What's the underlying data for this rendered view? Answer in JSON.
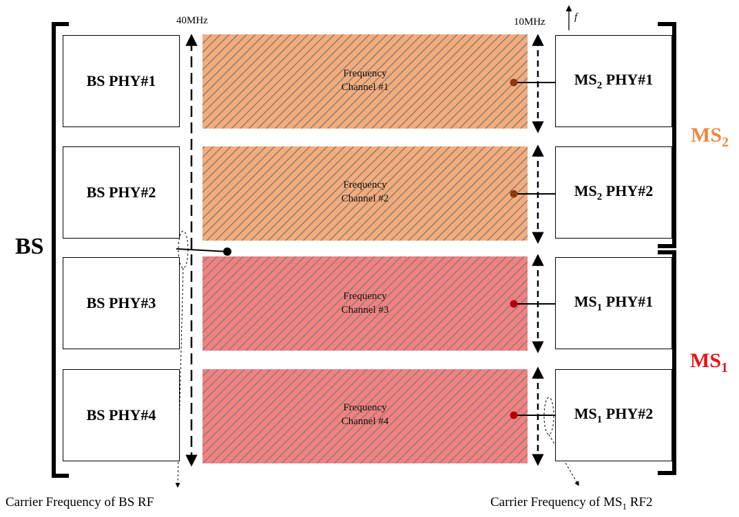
{
  "bs_label": "BS",
  "ms2_group": {
    "main": "MS",
    "sub": "2",
    "color": "#f2883c"
  },
  "ms1_group": {
    "main": "MS",
    "sub": "1",
    "color": "#e8141a"
  },
  "bs_bandwidth_label": "40MHz",
  "ms_bandwidth_label": "10MHz",
  "frequency_axis_label": "f",
  "bs_phys": [
    "BS PHY#1",
    "BS PHY#2",
    "BS PHY#3",
    "BS PHY#4"
  ],
  "ms_phys": [
    {
      "ms": "MS",
      "sub": "2",
      "phy": " PHY#1"
    },
    {
      "ms": "MS",
      "sub": "2",
      "phy": " PHY#2"
    },
    {
      "ms": "MS",
      "sub": "1",
      "phy": " PHY#1"
    },
    {
      "ms": "MS",
      "sub": "1",
      "phy": " PHY#2"
    }
  ],
  "channels": [
    {
      "line1": "Frequency",
      "line2": "Channel #1",
      "fill": "#f5ac79"
    },
    {
      "line1": "Frequency",
      "line2": "Channel #2",
      "fill": "#f5ac79"
    },
    {
      "line1": "Frequency",
      "line2": "Channel #3",
      "fill": "#f4807f"
    },
    {
      "line1": "Frequency",
      "line2": "Channel #4",
      "fill": "#f4807f"
    }
  ],
  "captions": {
    "bs_rf": "Carrier Frequency of BS RF",
    "ms1_rf2": {
      "prefix": "Carrier Frequency of MS",
      "sub": "1",
      "suffix": " RF2"
    }
  },
  "colors": {
    "ms2_dot": "#8b3a0e",
    "ms1_dot": "#b3000c",
    "hatch": "#808080"
  }
}
